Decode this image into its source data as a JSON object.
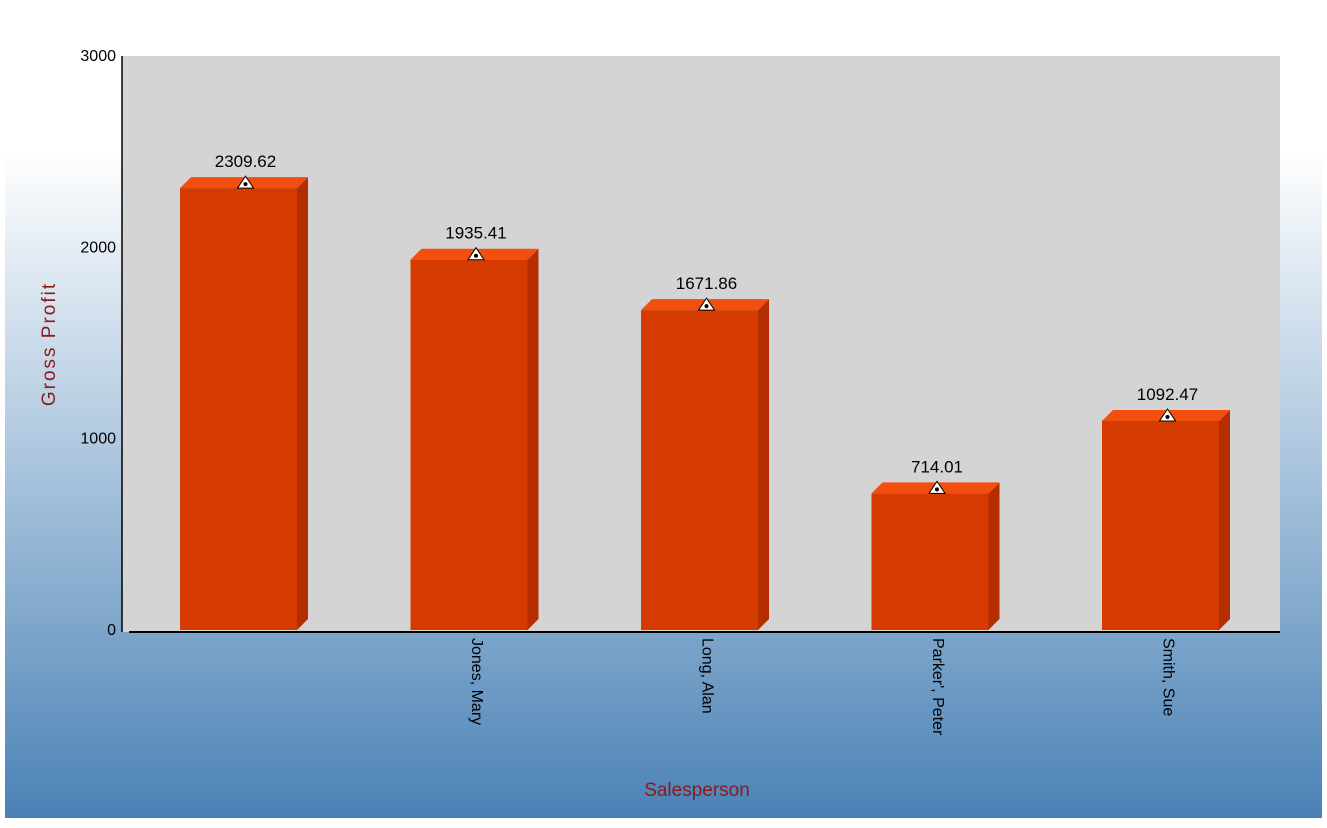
{
  "chart_data": {
    "type": "bar",
    "categories": [
      "",
      "Jones, Mary",
      "Long, Alan",
      "Parker', Peter",
      "Smith, Sue"
    ],
    "values": [
      2309.62,
      1935.41,
      1671.86,
      714.01,
      1092.47
    ],
    "data_labels": [
      "2309.62",
      "1935.41",
      "1671.86",
      "714.01",
      "1092.47"
    ],
    "title": "",
    "xlabel": "Salesperson",
    "ylabel": "Gross Profit",
    "ylim": [
      0,
      3000
    ],
    "yticks": [
      "0",
      "1000",
      "2000",
      "3000"
    ],
    "grid": false,
    "legend": "none",
    "colors": {
      "bar_front": "#d53a00",
      "bar_top": "#f24e10",
      "bar_side": "#b52e00",
      "plot_background": "#d4d4d4",
      "axis_title": "#8b1a1a",
      "background_top": "#ffffff",
      "background_bottom": "#4a82b6",
      "marker": "#ffffff"
    }
  }
}
